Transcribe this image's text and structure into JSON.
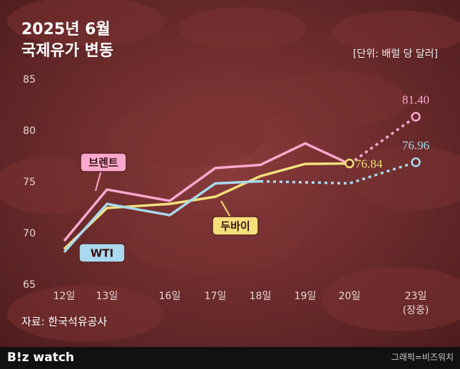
{
  "chart_data": {
    "type": "line",
    "title": "2025년 6월",
    "subtitle": "국제유가 변동",
    "unit_note": "[단위: 배럴 당 달러]",
    "source": "자료: 한국석유공사",
    "categories": [
      "12일",
      "13일",
      "16일",
      "17일",
      "18일",
      "19일",
      "20일",
      "23일"
    ],
    "category_note": "(장중)",
    "ylim": [
      65,
      85
    ],
    "yticks": [
      65,
      70,
      75,
      80,
      85
    ],
    "series": [
      {
        "name": "브렌트",
        "color": "#f9a9cd",
        "values": [
          69.3,
          74.3,
          73.2,
          76.4,
          76.7,
          78.8,
          76.8,
          81.4
        ],
        "dashed_from": 6,
        "value_labels": [
          null,
          null,
          null,
          null,
          null,
          null,
          null,
          "81.40"
        ]
      },
      {
        "name": "두바이",
        "color": "#f4df7c",
        "values": [
          68.5,
          72.5,
          72.9,
          73.6,
          75.6,
          76.8,
          76.84,
          null
        ],
        "value_labels": [
          null,
          null,
          null,
          null,
          null,
          null,
          "76.84",
          null
        ]
      },
      {
        "name": "WTI",
        "color": "#a9d9ee",
        "values": [
          68.2,
          72.9,
          71.8,
          74.9,
          75.1,
          75.0,
          74.9,
          76.96
        ],
        "dashed_from": 4,
        "value_labels": [
          null,
          null,
          null,
          null,
          null,
          null,
          null,
          "76.96"
        ]
      }
    ]
  },
  "footer": {
    "logo": "B!z watch",
    "credit": "그래픽=비즈워치"
  }
}
